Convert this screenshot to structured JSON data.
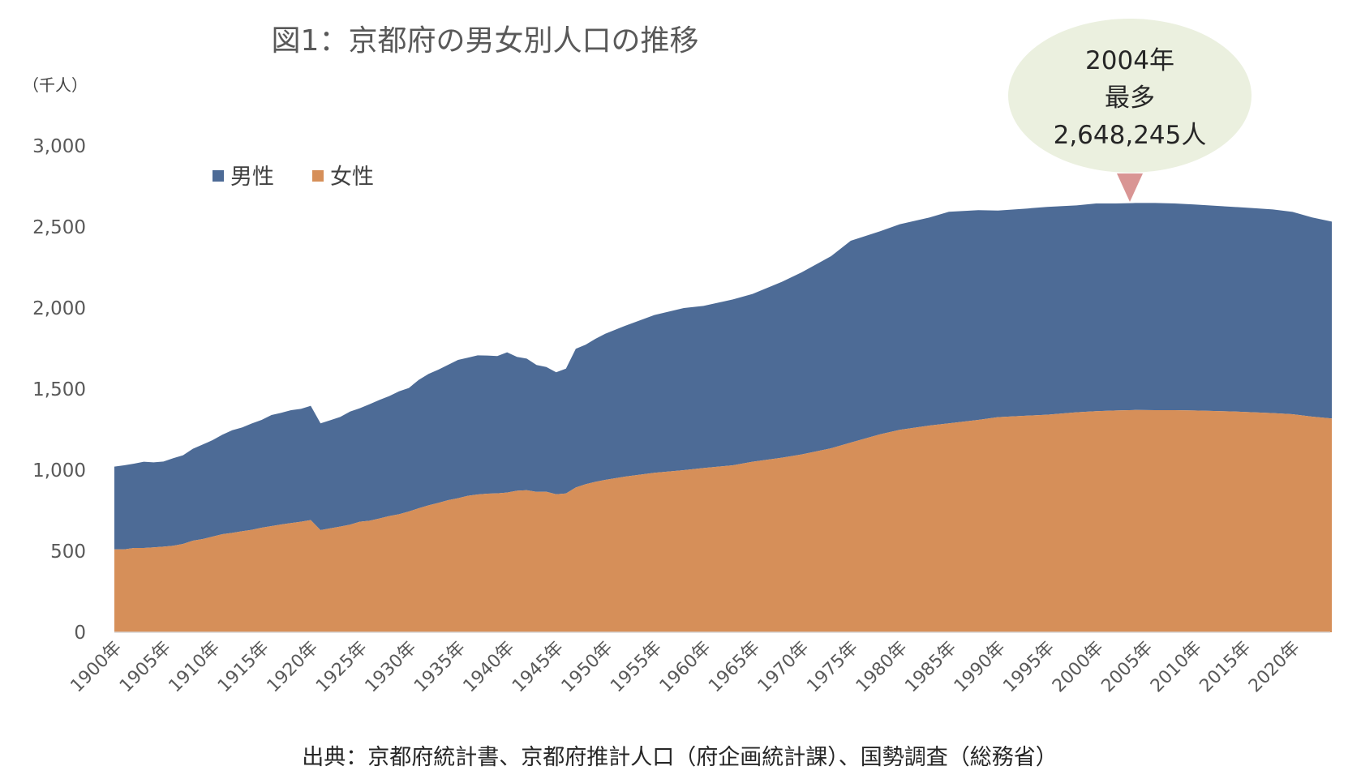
{
  "title": "図1：京都府の男女別人口の推移",
  "unit_label": "（千人）",
  "source": "出典：京都府統計書、京都府推計人口（府企画統計課）、国勢調査（総務省）",
  "legend": [
    {
      "name": "男性",
      "color": "#4d6b96"
    },
    {
      "name": "女性",
      "color": "#d68f59"
    }
  ],
  "callout": {
    "line1": "2004年",
    "line2": "最多",
    "line3": "2,648,245人",
    "bubble_color": "#ebf0df",
    "pointer_color": "#d99594"
  },
  "chart_data": {
    "type": "area",
    "stacked": true,
    "xlabel": "",
    "ylabel": "（千人）",
    "ylim": [
      0,
      3000
    ],
    "yticks": [
      "0",
      "500",
      "1,000",
      "1,500",
      "2,000",
      "2,500",
      "3,000"
    ],
    "x_tick_labels": [
      "1900年",
      "1905年",
      "1910年",
      "1915年",
      "1920年",
      "1925年",
      "1930年",
      "1935年",
      "1940年",
      "1945年",
      "1950年",
      "1955年",
      "1960年",
      "1965年",
      "1970年",
      "1975年",
      "1980年",
      "1985年",
      "1990年",
      "1995年",
      "2000年",
      "2005年",
      "2010年",
      "2015年",
      "2020年"
    ],
    "x_start_year": 1900,
    "x_end_year": 2024,
    "series": [
      {
        "name": "女性",
        "color": "#d68f59",
        "years": [
          1900,
          1901,
          1902,
          1903,
          1904,
          1905,
          1906,
          1907,
          1908,
          1909,
          1910,
          1911,
          1912,
          1913,
          1914,
          1915,
          1916,
          1917,
          1918,
          1919,
          1920,
          1921,
          1922,
          1923,
          1924,
          1925,
          1926,
          1927,
          1928,
          1929,
          1930,
          1931,
          1932,
          1933,
          1934,
          1935,
          1936,
          1937,
          1938,
          1939,
          1940,
          1941,
          1942,
          1943,
          1944,
          1945,
          1946,
          1947,
          1948,
          1949,
          1950,
          1952,
          1955,
          1958,
          1960,
          1963,
          1965,
          1968,
          1970,
          1973,
          1975,
          1978,
          1980,
          1983,
          1985,
          1988,
          1990,
          1993,
          1995,
          1998,
          2000,
          2002,
          2004,
          2006,
          2008,
          2010,
          2012,
          2014,
          2016,
          2018,
          2020,
          2022,
          2024
        ],
        "values": [
          511,
          511,
          520,
          520,
          524,
          528,
          534,
          545,
          565,
          575,
          590,
          605,
          613,
          623,
          632,
          645,
          655,
          665,
          674,
          682,
          692,
          630,
          641,
          652,
          664,
          682,
          688,
          702,
          717,
          728,
          745,
          765,
          783,
          798,
          815,
          827,
          842,
          850,
          855,
          857,
          862,
          873,
          876,
          866,
          867,
          851,
          856,
          893,
          913,
          928,
          940,
          960,
          984,
          1000,
          1013,
          1030,
          1052,
          1077,
          1097,
          1135,
          1170,
          1221,
          1249,
          1275,
          1289,
          1310,
          1327,
          1336,
          1342,
          1357,
          1364,
          1368,
          1371,
          1370,
          1370,
          1368,
          1365,
          1362,
          1357,
          1352,
          1345,
          1330,
          1319
        ]
      },
      {
        "name": "男性",
        "color": "#4d6b96",
        "years": [
          1900,
          1901,
          1902,
          1903,
          1904,
          1905,
          1906,
          1907,
          1908,
          1909,
          1910,
          1911,
          1912,
          1913,
          1914,
          1915,
          1916,
          1917,
          1918,
          1919,
          1920,
          1921,
          1922,
          1923,
          1924,
          1925,
          1926,
          1927,
          1928,
          1929,
          1930,
          1931,
          1932,
          1933,
          1934,
          1935,
          1936,
          1937,
          1938,
          1939,
          1940,
          1941,
          1942,
          1943,
          1944,
          1945,
          1946,
          1947,
          1948,
          1949,
          1950,
          1952,
          1955,
          1958,
          1960,
          1963,
          1965,
          1968,
          1970,
          1973,
          1975,
          1978,
          1980,
          1983,
          1985,
          1988,
          1990,
          1993,
          1995,
          1998,
          2000,
          2002,
          2004,
          2006,
          2008,
          2010,
          2012,
          2014,
          2016,
          2018,
          2020,
          2022,
          2024
        ],
        "values": [
          511,
          519,
          520,
          532,
          524,
          525,
          540,
          547,
          567,
          583,
          595,
          614,
          633,
          640,
          656,
          665,
          685,
          689,
          696,
          696,
          705,
          659,
          667,
          676,
          697,
          700,
          719,
          731,
          740,
          758,
          762,
          792,
          811,
          822,
          835,
          853,
          852,
          858,
          852,
          847,
          865,
          826,
          812,
          783,
          769,
          753,
          770,
          856,
          861,
          882,
          901,
          930,
          973,
          1000,
          1000,
          1023,
          1035,
          1085,
          1123,
          1185,
          1245,
          1253,
          1268,
          1283,
          1305,
          1294,
          1274,
          1278,
          1282,
          1276,
          1281,
          1277,
          1277,
          1278,
          1275,
          1271,
          1266,
          1262,
          1259,
          1256,
          1248,
          1229,
          1214
        ]
      }
    ]
  }
}
